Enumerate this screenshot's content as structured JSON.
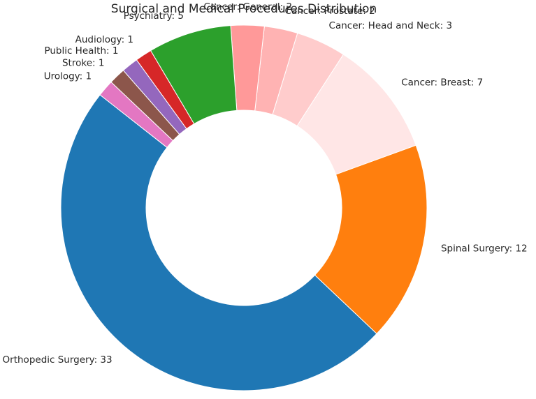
{
  "chart_data": {
    "type": "pie",
    "style": "donut",
    "title": "Surgical and Medical Procedures Distribution",
    "slices": [
      {
        "label": "Orthopedic Surgery",
        "value": 33,
        "color": "#1f77b4"
      },
      {
        "label": "Spinal Surgery",
        "value": 12,
        "color": "#ff7f0e"
      },
      {
        "label": "Cancer: Breast",
        "value": 7,
        "color": "#ffe6e6"
      },
      {
        "label": "Cancer: Head and Neck",
        "value": 3,
        "color": "#ffcccc"
      },
      {
        "label": "Cancer: Prostate",
        "value": 2,
        "color": "#ffb3b3"
      },
      {
        "label": "Cancer: General",
        "value": 2,
        "color": "#ff9999"
      },
      {
        "label": "Psychiatry",
        "value": 5,
        "color": "#2ca02c"
      },
      {
        "label": "Audiology",
        "value": 1,
        "color": "#d62728"
      },
      {
        "label": "Public Health",
        "value": 1,
        "color": "#9467bd"
      },
      {
        "label": "Stroke",
        "value": 1,
        "color": "#8c564b"
      },
      {
        "label": "Urology",
        "value": 1,
        "color": "#e377c2"
      }
    ],
    "start_angle_deg": 141.8,
    "direction": "counterclockwise"
  }
}
